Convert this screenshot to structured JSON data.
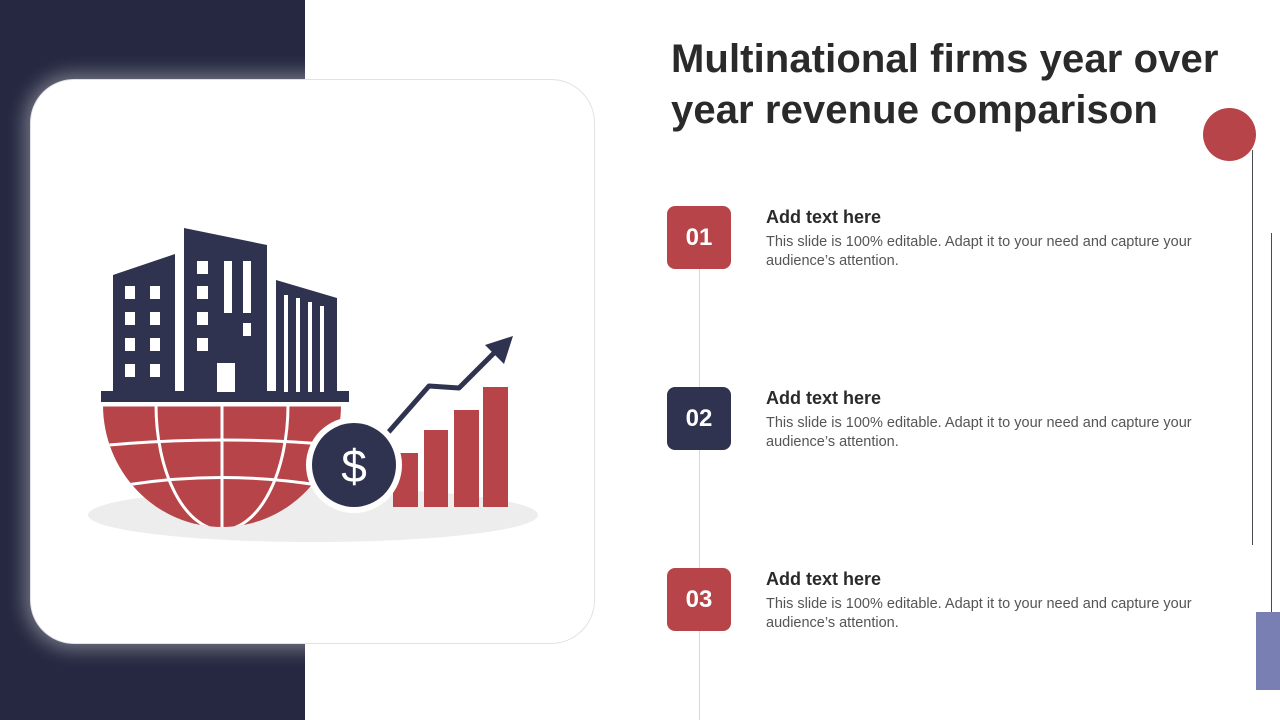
{
  "slide": {
    "title": "Multinational firms year over year revenue comparison",
    "colors": {
      "navy": "#2f3350",
      "red": "#b64448",
      "dark_panel": "#252840",
      "accent_bar": "#7a7fb3"
    }
  },
  "illustration": {
    "icon": "globe-buildings-revenue-growth-icon",
    "currency_symbol": "$"
  },
  "items": [
    {
      "number": "01",
      "heading": "Add text here",
      "text": "This slide is 100% editable. Adapt it to your need and capture your audience’s attention."
    },
    {
      "number": "02",
      "heading": "Add text here",
      "text": "This slide is 100% editable. Adapt it to your need and capture your audience’s attention."
    },
    {
      "number": "03",
      "heading": "Add text here",
      "text": "This slide is 100% editable. Adapt it to your need and capture your audience’s attention."
    }
  ]
}
